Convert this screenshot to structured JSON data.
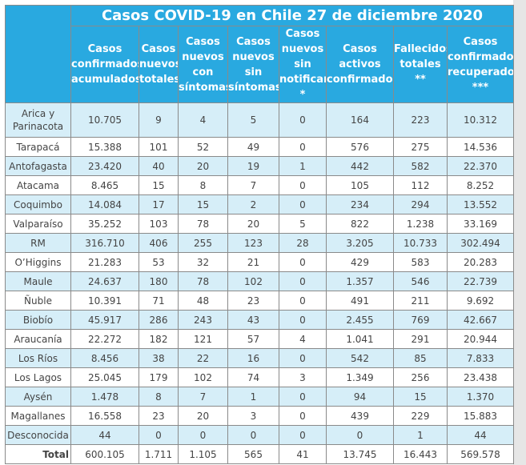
{
  "title": "Casos COVID-19 en Chile 27 de diciembre 2020",
  "colors": {
    "header": "#29a9e0",
    "alt_row": "#d6eef8",
    "border": "#8a8a8a"
  },
  "headers": [
    "Casos confirmados acumulados",
    "Casos nuevos totales",
    "Casos nuevos con síntomas",
    "Casos nuevos sin síntomas",
    "Casos nuevos sin notificar *",
    "Casos activos confirmados",
    "Fallecidos totales **",
    "Casos confirmados recuperados ***"
  ],
  "rows": [
    {
      "region": "Arica y Parinacota",
      "values": [
        "10.705",
        "9",
        "4",
        "5",
        "0",
        "164",
        "223",
        "10.312"
      ]
    },
    {
      "region": "Tarapacá",
      "values": [
        "15.388",
        "101",
        "52",
        "49",
        "0",
        "576",
        "275",
        "14.536"
      ]
    },
    {
      "region": "Antofagasta",
      "values": [
        "23.420",
        "40",
        "20",
        "19",
        "1",
        "442",
        "582",
        "22.370"
      ]
    },
    {
      "region": "Atacama",
      "values": [
        "8.465",
        "15",
        "8",
        "7",
        "0",
        "105",
        "112",
        "8.252"
      ]
    },
    {
      "region": "Coquimbo",
      "values": [
        "14.084",
        "17",
        "15",
        "2",
        "0",
        "234",
        "294",
        "13.552"
      ]
    },
    {
      "region": "Valparaíso",
      "values": [
        "35.252",
        "103",
        "78",
        "20",
        "5",
        "822",
        "1.238",
        "33.169"
      ]
    },
    {
      "region": "RM",
      "values": [
        "316.710",
        "406",
        "255",
        "123",
        "28",
        "3.205",
        "10.733",
        "302.494"
      ]
    },
    {
      "region": "O’Higgins",
      "values": [
        "21.283",
        "53",
        "32",
        "21",
        "0",
        "429",
        "583",
        "20.283"
      ]
    },
    {
      "region": "Maule",
      "values": [
        "24.637",
        "180",
        "78",
        "102",
        "0",
        "1.357",
        "546",
        "22.739"
      ]
    },
    {
      "region": "Ñuble",
      "values": [
        "10.391",
        "71",
        "48",
        "23",
        "0",
        "491",
        "211",
        "9.692"
      ]
    },
    {
      "region": "Biobío",
      "values": [
        "45.917",
        "286",
        "243",
        "43",
        "0",
        "2.455",
        "769",
        "42.667"
      ]
    },
    {
      "region": "Araucanía",
      "values": [
        "22.272",
        "182",
        "121",
        "57",
        "4",
        "1.041",
        "291",
        "20.944"
      ]
    },
    {
      "region": "Los Ríos",
      "values": [
        "8.456",
        "38",
        "22",
        "16",
        "0",
        "542",
        "85",
        "7.833"
      ]
    },
    {
      "region": "Los Lagos",
      "values": [
        "25.045",
        "179",
        "102",
        "74",
        "3",
        "1.349",
        "256",
        "23.438"
      ]
    },
    {
      "region": "Aysén",
      "values": [
        "1.478",
        "8",
        "7",
        "1",
        "0",
        "94",
        "15",
        "1.370"
      ]
    },
    {
      "region": "Magallanes",
      "values": [
        "16.558",
        "23",
        "20",
        "3",
        "0",
        "439",
        "229",
        "15.883"
      ]
    },
    {
      "region": "Desconocida",
      "values": [
        "44",
        "0",
        "0",
        "0",
        "0",
        "0",
        "1",
        "44"
      ]
    }
  ],
  "total": {
    "label": "Total",
    "values": [
      "600.105",
      "1.711",
      "1.105",
      "565",
      "41",
      "13.745",
      "16.443",
      "569.578"
    ]
  }
}
